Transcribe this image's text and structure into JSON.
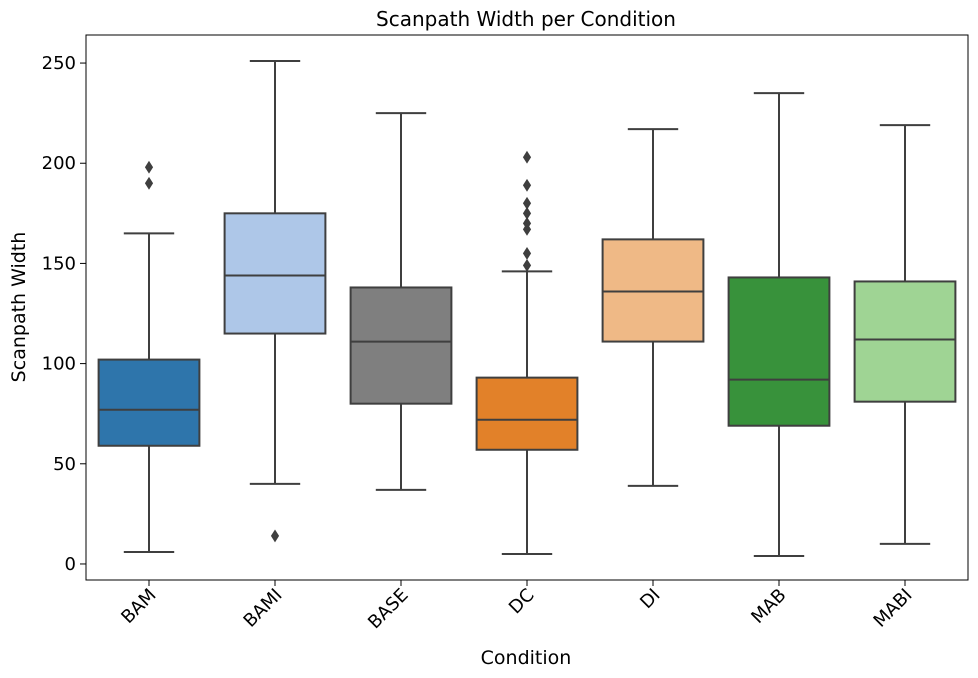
{
  "chart_data": {
    "type": "box",
    "title": "Scanpath Width per Condition",
    "xlabel": "Condition",
    "ylabel": "Scanpath Width",
    "ylim": [
      -8,
      264
    ],
    "yticks": [
      0,
      50,
      100,
      150,
      200,
      250
    ],
    "grid": false,
    "legend": "none",
    "categories": [
      "BAM",
      "BAMI",
      "BASE",
      "DC",
      "DI",
      "MAB",
      "MABI"
    ],
    "colors": [
      "#2e75ab",
      "#aec7e8",
      "#7f7f7f",
      "#e28129",
      "#efb986",
      "#38923b",
      "#9fd494"
    ],
    "boxes": [
      {
        "category": "BAM",
        "whisker_low": 6,
        "q1": 59,
        "median": 77,
        "q3": 102,
        "whisker_high": 165,
        "outliers": [
          190,
          198
        ]
      },
      {
        "category": "BAMI",
        "whisker_low": 40,
        "q1": 115,
        "median": 144,
        "q3": 175,
        "whisker_high": 251,
        "outliers": [
          14
        ]
      },
      {
        "category": "BASE",
        "whisker_low": 37,
        "q1": 80,
        "median": 111,
        "q3": 138,
        "whisker_high": 225,
        "outliers": []
      },
      {
        "category": "DC",
        "whisker_low": 5,
        "q1": 57,
        "median": 72,
        "q3": 93,
        "whisker_high": 146,
        "outliers": [
          149,
          155,
          167,
          170,
          175,
          180,
          189,
          203
        ]
      },
      {
        "category": "DI",
        "whisker_low": 39,
        "q1": 111,
        "median": 136,
        "q3": 162,
        "whisker_high": 217,
        "outliers": []
      },
      {
        "category": "MAB",
        "whisker_low": 4,
        "q1": 69,
        "median": 92,
        "q3": 143,
        "whisker_high": 235,
        "outliers": []
      },
      {
        "category": "MABI",
        "whisker_low": 10,
        "q1": 81,
        "median": 112,
        "q3": 141,
        "whisker_high": 219,
        "outliers": []
      }
    ]
  }
}
